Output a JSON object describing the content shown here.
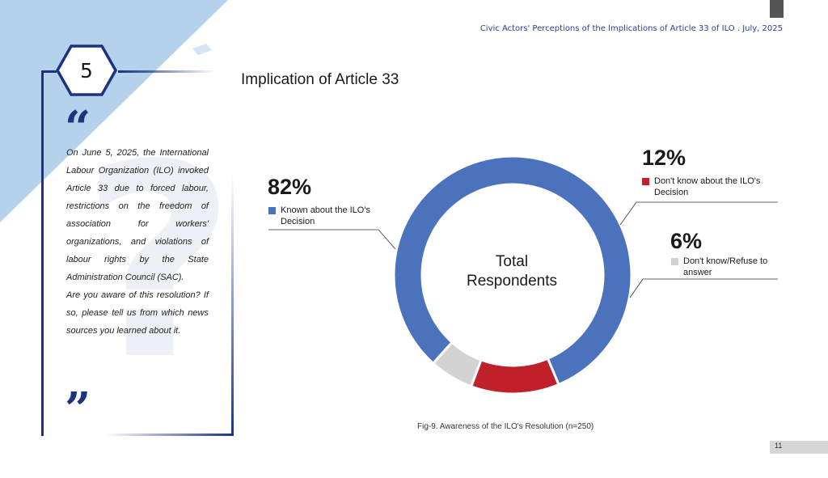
{
  "header": {
    "title": "Civic Actors' Perceptions of the Implications of Article 33 of ILO . July, 2025"
  },
  "quote": {
    "number": "5",
    "paragraphs": [
      "On June 5, 2025, the International Labour Organization (ILO) invoked Article 33 due to forced labour, restrictions on the freedom of association for workers' organizations, and violations of labour rights by the State Administration Council (SAC).",
      "Are you aware of this resolution? If so, please tell us from which news sources you learned about it."
    ]
  },
  "section_title": "Implication of Article 33",
  "chart_data": {
    "type": "pie",
    "variant": "donut",
    "center_label": [
      "Total",
      "Respondents"
    ],
    "slices": [
      {
        "label": "Known about the ILO's Decision",
        "pct_label": "82%",
        "value": 82,
        "color": "#4a72bd"
      },
      {
        "label": "Don't know about the ILO's Decision",
        "pct_label": "12%",
        "value": 12,
        "color": "#c0202a"
      },
      {
        "label": "Don't know/Refuse to answer",
        "pct_label": "6%",
        "value": 6,
        "color": "#d3d3d3"
      }
    ],
    "caption": "Fig-9. Awareness of the ILO's Resolution (n=250)"
  },
  "page_number": "11",
  "colors": {
    "navy": "#1f3280",
    "light_blue": "#b5d2ec"
  }
}
